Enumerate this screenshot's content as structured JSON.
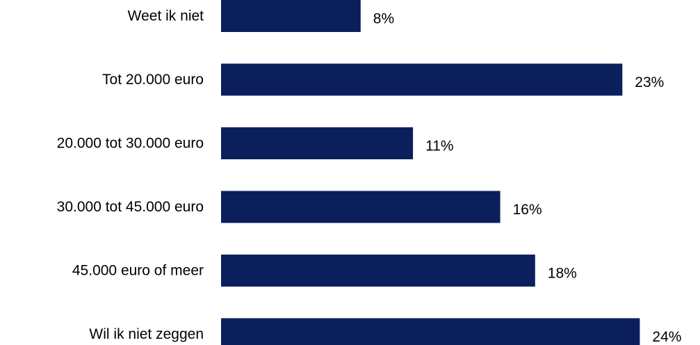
{
  "chart_data": {
    "type": "bar",
    "orientation": "horizontal",
    "categories": [
      "Weet ik niet",
      "Tot 20.000 euro",
      "20.000 tot 30.000 euro",
      "30.000 tot 45.000 euro",
      "45.000 euro of meer",
      "Wil ik niet zeggen"
    ],
    "values": [
      8,
      23,
      11,
      16,
      18,
      24
    ],
    "value_labels": [
      "8%",
      "23%",
      "11%",
      "16%",
      "18%",
      "24%"
    ],
    "unit": "%",
    "xlim": [
      0,
      24
    ],
    "grid": false,
    "legend": "none",
    "colors": {
      "bar": "#0a1f5c"
    }
  }
}
